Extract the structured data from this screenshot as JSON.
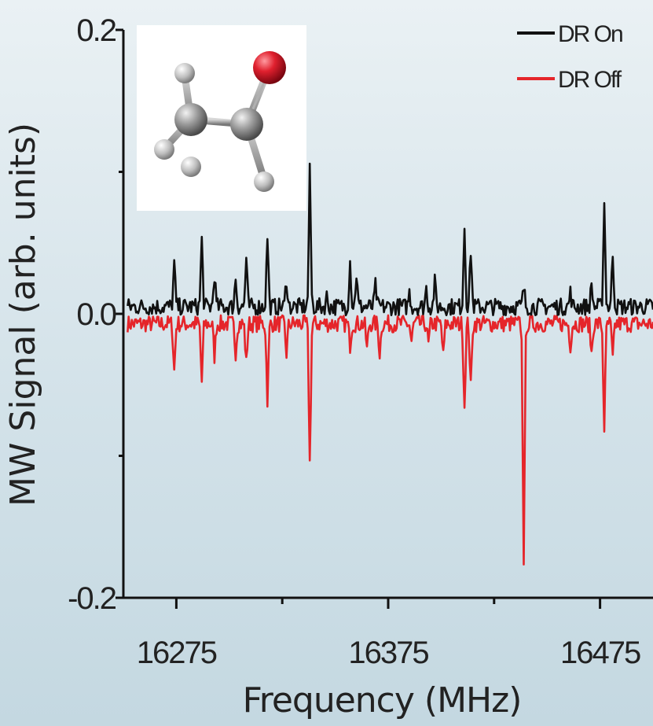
{
  "chart_data": {
    "type": "line",
    "title": "",
    "xlabel": "Frequency (MHz)",
    "ylabel": "MW Signal (arb. units)",
    "xlim": [
      16250,
      16500
    ],
    "ylim": [
      -0.2,
      0.2
    ],
    "x_ticks": [
      16275,
      16375,
      16475
    ],
    "x_tick_labels": [
      "16275",
      "16375",
      "16475"
    ],
    "y_ticks": [
      -0.2,
      0.0,
      0.2
    ],
    "y_tick_labels": [
      "-0.2",
      "0.0",
      "0.2"
    ],
    "grid": false,
    "legend_position": "top-right",
    "inset": "acetaldehyde-molecule-ball-and-stick",
    "series": [
      {
        "name": "DR On",
        "color": "#111111",
        "baseline": 0.005,
        "peaks": [
          {
            "x": 16274,
            "y": 0.035
          },
          {
            "x": 16287,
            "y": 0.052
          },
          {
            "x": 16293,
            "y": 0.028
          },
          {
            "x": 16303,
            "y": 0.025
          },
          {
            "x": 16308,
            "y": 0.038
          },
          {
            "x": 16318,
            "y": 0.055
          },
          {
            "x": 16327,
            "y": 0.025
          },
          {
            "x": 16338,
            "y": 0.1
          },
          {
            "x": 16346,
            "y": 0.012
          },
          {
            "x": 16357,
            "y": 0.037
          },
          {
            "x": 16360,
            "y": 0.028
          },
          {
            "x": 16369,
            "y": 0.02
          },
          {
            "x": 16385,
            "y": 0.015
          },
          {
            "x": 16393,
            "y": 0.018
          },
          {
            "x": 16397,
            "y": 0.022
          },
          {
            "x": 16411,
            "y": 0.062
          },
          {
            "x": 16414,
            "y": 0.045
          },
          {
            "x": 16439,
            "y": 0.018
          },
          {
            "x": 16461,
            "y": 0.015
          },
          {
            "x": 16471,
            "y": 0.02
          },
          {
            "x": 16477,
            "y": 0.078
          },
          {
            "x": 16481,
            "y": 0.042
          }
        ]
      },
      {
        "name": "DR Off",
        "color": "#e5252a",
        "baseline": -0.007,
        "peaks": [
          {
            "x": 16274,
            "y": -0.04
          },
          {
            "x": 16287,
            "y": -0.048
          },
          {
            "x": 16293,
            "y": -0.03
          },
          {
            "x": 16303,
            "y": -0.027
          },
          {
            "x": 16308,
            "y": -0.035
          },
          {
            "x": 16318,
            "y": -0.06
          },
          {
            "x": 16327,
            "y": -0.028
          },
          {
            "x": 16338,
            "y": -0.105
          },
          {
            "x": 16357,
            "y": -0.022
          },
          {
            "x": 16365,
            "y": -0.025
          },
          {
            "x": 16371,
            "y": -0.028
          },
          {
            "x": 16386,
            "y": -0.02
          },
          {
            "x": 16394,
            "y": -0.022
          },
          {
            "x": 16401,
            "y": -0.03
          },
          {
            "x": 16411,
            "y": -0.065
          },
          {
            "x": 16414,
            "y": -0.052
          },
          {
            "x": 16439,
            "y": -0.172
          },
          {
            "x": 16461,
            "y": -0.022
          },
          {
            "x": 16471,
            "y": -0.028
          },
          {
            "x": 16477,
            "y": -0.08
          },
          {
            "x": 16481,
            "y": -0.032
          }
        ]
      }
    ]
  }
}
